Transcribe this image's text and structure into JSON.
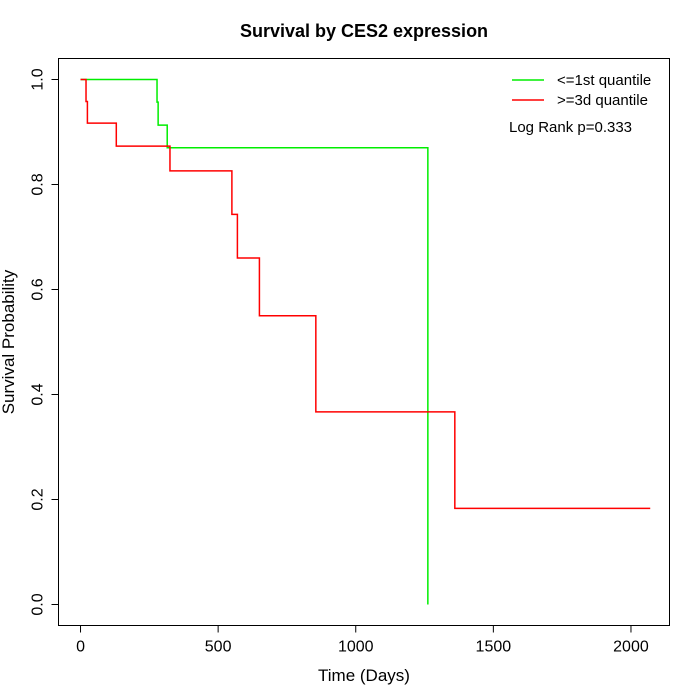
{
  "chart_data": {
    "type": "line",
    "title": "Survival by CES2 expression",
    "xlabel": "Time (Days)",
    "ylabel": "Survival Probability",
    "xlim": [
      -80,
      2140
    ],
    "ylim": [
      -0.04,
      1.04
    ],
    "x_ticks": [
      0,
      500,
      1000,
      1500,
      2000
    ],
    "y_ticks": [
      0.0,
      0.2,
      0.4,
      0.6,
      0.8,
      1.0
    ],
    "x_tick_labels": [
      "0",
      "500",
      "1000",
      "1500",
      "2000"
    ],
    "y_tick_labels": [
      "0.0",
      "0.2",
      "0.4",
      "0.6",
      "0.8",
      "1.0"
    ],
    "grid": false,
    "legend_position": "top-right",
    "annotation": "Log Rank p=0.333",
    "series": [
      {
        "name": "<=1st quantile",
        "color": "#00ee00",
        "steps": [
          [
            0,
            1.0
          ],
          [
            278,
            0.957
          ],
          [
            282,
            0.913
          ],
          [
            315,
            0.87
          ],
          [
            1262,
            0.0
          ]
        ]
      },
      {
        "name": ">=3d quantile",
        "color": "#ff0000",
        "steps": [
          [
            0,
            1.0
          ],
          [
            20,
            0.958
          ],
          [
            25,
            0.917
          ],
          [
            130,
            0.873
          ],
          [
            325,
            0.826
          ],
          [
            550,
            0.743
          ],
          [
            570,
            0.66
          ],
          [
            650,
            0.55
          ],
          [
            855,
            0.367
          ],
          [
            1360,
            0.183
          ],
          [
            2070,
            0.183
          ]
        ]
      }
    ]
  }
}
